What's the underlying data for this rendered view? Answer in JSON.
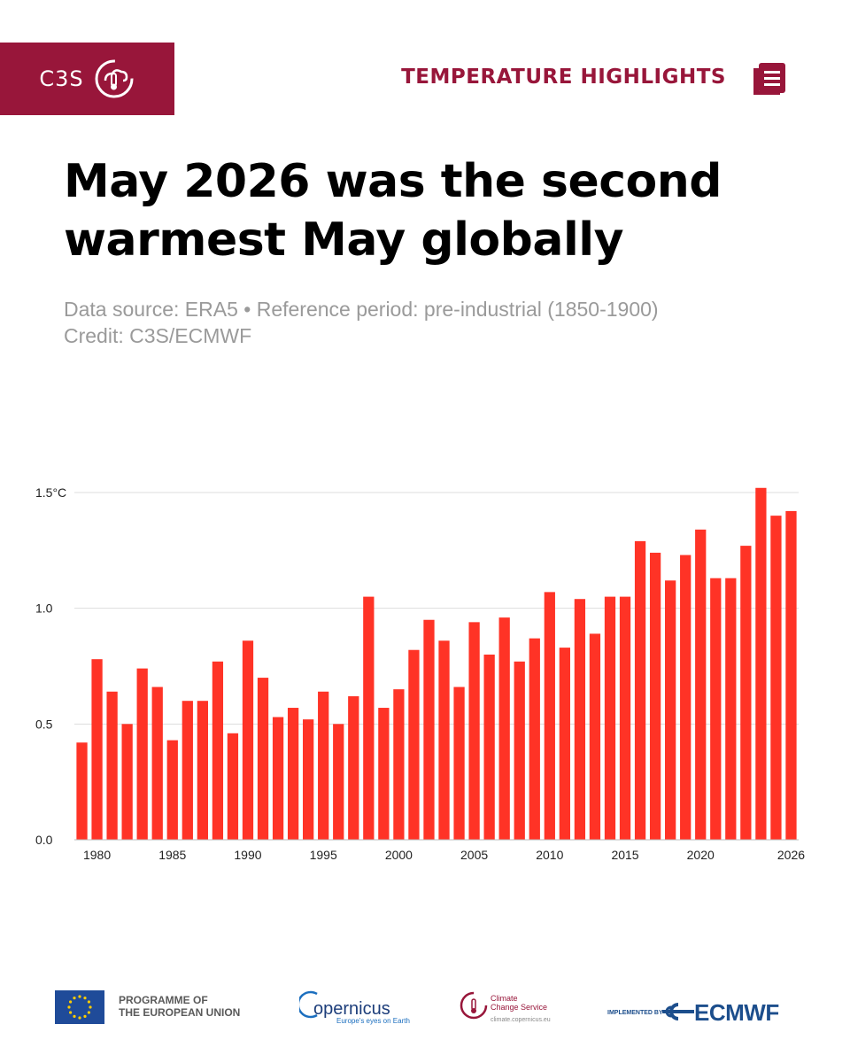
{
  "header": {
    "brand": "C3S",
    "section": "TEMPERATURE HIGHLIGHTS"
  },
  "title": "May 2026 was the second warmest May globally",
  "subtitle": {
    "line1": "Data source: ERA5 • Reference period: pre-industrial (1850-1900)",
    "line2": "Credit: C3S/ECMWF"
  },
  "colors": {
    "brand": "#98163a",
    "bar": "#ff3326",
    "grid": "#dddddd"
  },
  "chart_data": {
    "type": "bar",
    "title": "",
    "xlabel": "",
    "ylabel": "",
    "ylim": [
      0,
      1.5
    ],
    "yticks": [
      0.0,
      0.5,
      1.0,
      1.5
    ],
    "ytick_labels": [
      "0.0",
      "0.5",
      "1.0",
      "1.5°C"
    ],
    "xtick_labels": [
      "1980",
      "1985",
      "1990",
      "1995",
      "2000",
      "2005",
      "2010",
      "2015",
      "2020",
      "2026"
    ],
    "grid": true,
    "categories": [
      1979,
      1980,
      1981,
      1982,
      1983,
      1984,
      1985,
      1986,
      1987,
      1988,
      1989,
      1990,
      1991,
      1992,
      1993,
      1994,
      1995,
      1996,
      1997,
      1998,
      1999,
      2000,
      2001,
      2002,
      2003,
      2004,
      2005,
      2006,
      2007,
      2008,
      2009,
      2010,
      2011,
      2012,
      2013,
      2014,
      2015,
      2016,
      2017,
      2018,
      2019,
      2020,
      2021,
      2022,
      2023,
      2024,
      2025,
      2026
    ],
    "values": [
      0.42,
      0.78,
      0.64,
      0.5,
      0.74,
      0.66,
      0.43,
      0.6,
      0.6,
      0.77,
      0.46,
      0.86,
      0.7,
      0.53,
      0.57,
      0.52,
      0.64,
      0.5,
      0.62,
      1.05,
      0.57,
      0.65,
      0.82,
      0.95,
      0.86,
      0.66,
      0.94,
      0.8,
      0.96,
      0.77,
      0.87,
      1.07,
      0.83,
      1.04,
      0.89,
      1.05,
      1.05,
      1.29,
      1.24,
      1.12,
      1.23,
      1.34,
      1.13,
      1.13,
      1.27,
      1.52,
      1.4,
      1.42
    ]
  },
  "footer": {
    "eu_line1": "PROGRAMME OF",
    "eu_line2": "THE EUROPEAN UNION",
    "copernicus": "opernicus",
    "copernicus_tag": "Europe's eyes on Earth",
    "ccs_line1": "Climate",
    "ccs_line2": "Change Service",
    "ccs_url": "climate.copernicus.eu",
    "implemented_by": "IMPLEMENTED BY",
    "ecmwf": "ECMWF"
  }
}
